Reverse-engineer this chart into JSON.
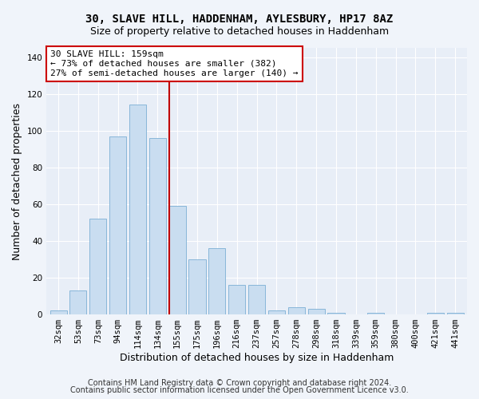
{
  "title_line1": "30, SLAVE HILL, HADDENHAM, AYLESBURY, HP17 8AZ",
  "title_line2": "Size of property relative to detached houses in Haddenham",
  "xlabel": "Distribution of detached houses by size in Haddenham",
  "ylabel": "Number of detached properties",
  "categories": [
    "32sqm",
    "53sqm",
    "73sqm",
    "94sqm",
    "114sqm",
    "134sqm",
    "155sqm",
    "175sqm",
    "196sqm",
    "216sqm",
    "237sqm",
    "257sqm",
    "278sqm",
    "298sqm",
    "318sqm",
    "339sqm",
    "359sqm",
    "380sqm",
    "400sqm",
    "421sqm",
    "441sqm"
  ],
  "values": [
    2,
    13,
    52,
    97,
    114,
    96,
    59,
    30,
    36,
    16,
    16,
    2,
    4,
    3,
    1,
    0,
    1,
    0,
    0,
    1,
    1
  ],
  "bar_color": "#c9ddf0",
  "bar_edge_color": "#7bafd4",
  "vline_x_index": 6,
  "vline_color": "#c00000",
  "annotation_text": "30 SLAVE HILL: 159sqm\n← 73% of detached houses are smaller (382)\n27% of semi-detached houses are larger (140) →",
  "annotation_box_color": "#ffffff",
  "annotation_box_edge_color": "#cc0000",
  "ylim": [
    0,
    145
  ],
  "yticks": [
    0,
    20,
    40,
    60,
    80,
    100,
    120,
    140
  ],
  "footer_line1": "Contains HM Land Registry data © Crown copyright and database right 2024.",
  "footer_line2": "Contains public sector information licensed under the Open Government Licence v3.0.",
  "fig_bg_color": "#f0f4fa",
  "plot_bg_color": "#e8eef7",
  "title_fontsize": 10,
  "subtitle_fontsize": 9,
  "axis_label_fontsize": 9,
  "tick_fontsize": 7.5,
  "footer_fontsize": 7,
  "annotation_fontsize": 8
}
